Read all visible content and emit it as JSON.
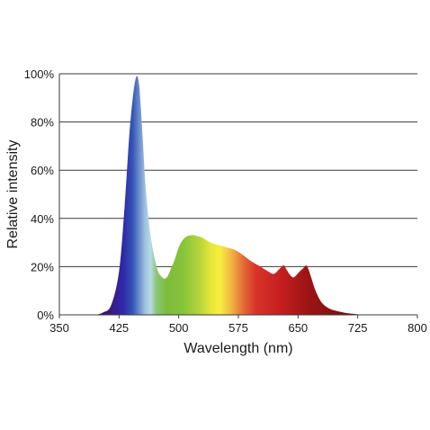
{
  "chart_data": {
    "type": "area",
    "title": "",
    "xlabel": "Wavelength (nm)",
    "ylabel": "Relative intensity",
    "xlim": [
      350,
      800
    ],
    "ylim": [
      0,
      100
    ],
    "x_ticks": [
      350,
      425,
      500,
      575,
      650,
      725,
      800
    ],
    "x_tick_labels": [
      "350",
      "425",
      "500",
      "575",
      "650",
      "725",
      "800"
    ],
    "y_ticks": [
      0,
      20,
      40,
      60,
      80,
      100
    ],
    "y_tick_labels": [
      "0%",
      "20%",
      "40%",
      "60%",
      "80%",
      "100%"
    ],
    "grid": "horizontal",
    "legend": "none",
    "fill": "visible-spectrum gradient",
    "series": [
      {
        "x": [
          395,
          405,
          415,
          425,
          432,
          438,
          443,
          447,
          450,
          452,
          455,
          458,
          462,
          466,
          470,
          474,
          478,
          482,
          486,
          490,
          495,
          500,
          505,
          510,
          515,
          520,
          525,
          530,
          540,
          550,
          560,
          570,
          580,
          590,
          600,
          610,
          618,
          622,
          625,
          628,
          632,
          636,
          640,
          644,
          648,
          652,
          657,
          660,
          663,
          667,
          672,
          680,
          690,
          700,
          710,
          720,
          730
        ],
        "y": [
          0,
          1,
          4,
          18,
          45,
          75,
          92,
          99,
          96,
          88,
          72,
          55,
          40,
          30,
          23,
          18,
          16,
          15,
          16,
          19,
          23,
          28,
          31,
          32.5,
          33,
          33,
          32.5,
          32,
          30,
          29,
          28,
          27,
          25,
          22.5,
          20.5,
          18.5,
          17,
          17.5,
          18.5,
          19.5,
          20.5,
          18.5,
          16.5,
          15.5,
          16.5,
          18,
          19.5,
          20.5,
          19,
          15,
          10,
          5,
          2.5,
          1.5,
          0.8,
          0.4,
          0
        ]
      }
    ]
  }
}
